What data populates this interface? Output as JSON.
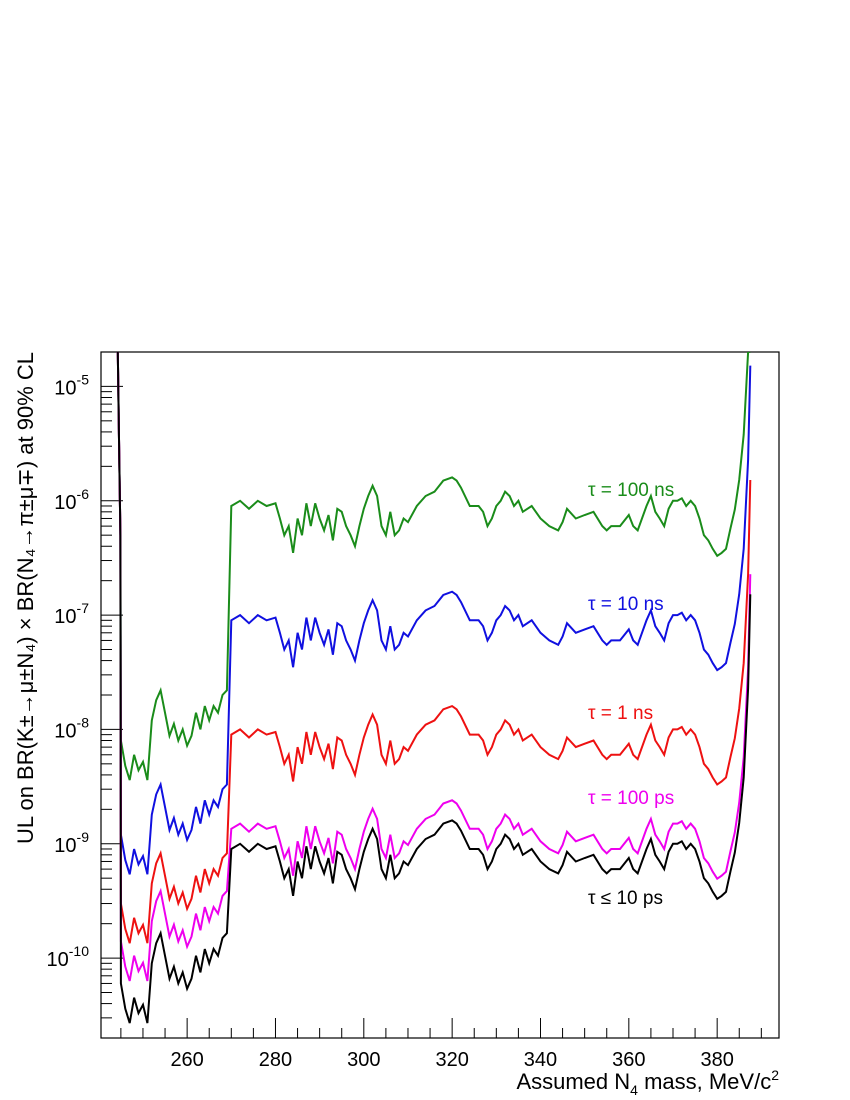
{
  "chart_data": {
    "type": "line",
    "xlabel": "Assumed N",
    "xlabel_sub": "4",
    "xlabel_tail": " mass, MeV/c",
    "xlabel_sup": "2",
    "ylabel": "UL on BR(K±→μ±N₄) × BR(N₄→π±μ∓) at 90% CL",
    "xlim": [
      240.5,
      394
    ],
    "ylim": [
      2e-11,
      2e-05
    ],
    "yscale": "log",
    "grid": false,
    "x_ticks": [
      {
        "value": 260,
        "label": "260"
      },
      {
        "value": 280,
        "label": "280"
      },
      {
        "value": 300,
        "label": "300"
      },
      {
        "value": 320,
        "label": "320"
      },
      {
        "value": 340,
        "label": "340"
      },
      {
        "value": 360,
        "label": "360"
      },
      {
        "value": 380,
        "label": "380"
      }
    ],
    "y_ticks": [
      {
        "value": 1e-10,
        "base": "10",
        "exp": "-10"
      },
      {
        "value": 1e-09,
        "base": "10",
        "exp": "-9"
      },
      {
        "value": 1e-08,
        "base": "10",
        "exp": "-8"
      },
      {
        "value": 1e-07,
        "base": "10",
        "exp": "-7"
      },
      {
        "value": 1e-06,
        "base": "10",
        "exp": "-6"
      },
      {
        "value": 1e-05,
        "base": "10",
        "exp": "-5"
      }
    ],
    "base_shape_x": [
      245.0,
      246.0,
      247.0,
      248.0,
      249.0,
      250.0,
      251.0,
      252.0,
      253.0,
      254.0,
      255.0,
      256.0,
      257.0,
      258.0,
      259.0,
      260.0,
      261.0,
      262.0,
      263.0,
      264.0,
      265.0,
      266.0,
      267.0,
      268.0,
      269.0,
      270.0,
      272.0,
      274.0,
      276.0,
      278.0,
      280.0,
      281.0,
      282.0,
      283.0,
      284.0,
      285.0,
      286.0,
      287.0,
      288.0,
      289.0,
      290.0,
      291.0,
      292.0,
      293.0,
      294.0,
      295.0,
      296.0,
      297.0,
      298.0,
      299.0,
      300.0,
      301.0,
      302.0,
      303.0,
      304.0,
      305.0,
      306.0,
      307.0,
      308.0,
      309.0,
      310.0,
      312.0,
      314.0,
      316.0,
      318.0,
      320.0,
      321.0,
      322.0,
      324.0,
      326.0,
      327.0,
      328.0,
      329.0,
      330.0,
      331.0,
      332.0,
      333.0,
      334.0,
      335.0,
      336.0,
      338.0,
      340.0,
      342.0,
      344.0,
      345.0,
      346.0,
      348.0,
      350.0,
      352.0,
      354.0,
      355.0,
      356.0,
      358.0,
      360.0,
      361.0,
      362.0,
      364.0,
      365.0,
      366.0,
      367.0,
      368.0,
      369.0,
      370.0,
      371.0,
      372.0,
      373.0,
      374.0,
      375.0,
      376.0,
      377.0,
      378.0,
      379.0,
      380.0,
      381.0,
      382.0
    ],
    "base_shape_values": [
      0.2,
      0.12,
      0.09,
      0.15,
      0.11,
      0.13,
      0.09,
      0.3,
      0.45,
      0.55,
      0.35,
      0.22,
      0.28,
      0.2,
      0.25,
      0.18,
      0.22,
      0.35,
      0.25,
      0.4,
      0.3,
      0.4,
      0.35,
      0.5,
      0.55,
      0.9,
      1.0,
      0.85,
      1.0,
      0.9,
      0.95,
      0.7,
      0.5,
      0.6,
      0.35,
      0.7,
      0.5,
      0.95,
      0.6,
      0.95,
      0.7,
      0.55,
      0.75,
      0.45,
      0.85,
      0.8,
      0.6,
      0.5,
      0.4,
      0.6,
      0.85,
      1.1,
      1.35,
      1.1,
      0.6,
      0.5,
      0.8,
      0.5,
      0.55,
      0.7,
      0.65,
      0.9,
      1.1,
      1.2,
      1.5,
      1.6,
      1.5,
      1.3,
      0.9,
      0.9,
      0.8,
      0.6,
      0.7,
      0.9,
      1.0,
      1.2,
      1.1,
      0.9,
      1.0,
      0.8,
      0.9,
      0.7,
      0.6,
      0.55,
      0.65,
      0.85,
      0.7,
      0.75,
      0.8,
      0.6,
      0.55,
      0.6,
      0.6,
      0.75,
      0.6,
      0.55,
      0.9,
      1.1,
      0.8,
      0.7,
      0.6,
      0.85,
      1.0,
      1.0,
      1.05,
      0.9,
      1.0,
      0.9,
      0.7,
      0.5,
      0.45,
      0.38,
      0.33,
      0.35,
      0.38
    ],
    "series": [
      {
        "name": "τ = 100 ns",
        "color": "#1a8c1a",
        "scale": 1e-06,
        "low_k": 40
      },
      {
        "name": "τ = 10 ns",
        "color": "#1010e0",
        "scale": 1e-07,
        "low_k": 6
      },
      {
        "name": "τ = 1 ns",
        "color": "#ee1111",
        "scale": 1e-08,
        "low_k": 1.5
      },
      {
        "name": "τ = 100 ps",
        "color": "#ee00ee",
        "scale": 1.5e-09,
        "low_k": 0.7
      },
      {
        "name": "τ ≤ 10 ps",
        "color": "#000000",
        "scale": 1e-09,
        "low_k": 0.3
      }
    ],
    "left_edge": {
      "x": [
        244.3,
        244.6,
        244.9
      ],
      "values": [
        2e-05,
        3e-06,
        5e-07
      ]
    },
    "right_edge": {
      "x": [
        383,
        384,
        385,
        386,
        387,
        387.5
      ],
      "factors": [
        1.5,
        2.2,
        4,
        10,
        60,
        400
      ],
      "ceiling": 2e-05
    }
  }
}
